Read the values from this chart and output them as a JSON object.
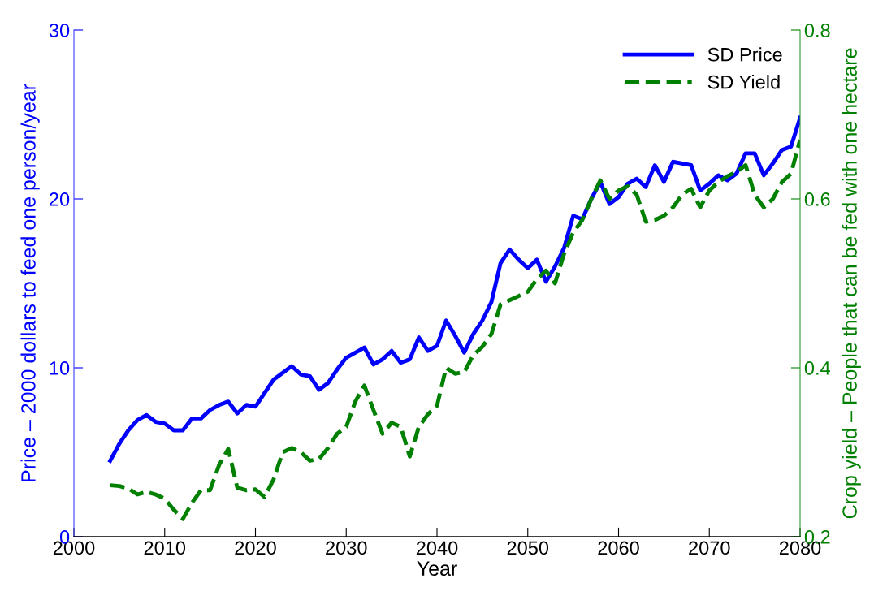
{
  "chart_data": {
    "type": "line",
    "xlabel": "Year",
    "ylabel": "Price – 2000 dollars to feed one person/year",
    "y2label": "Crop yield – People that can be fed with one hectare",
    "x": [
      2004,
      2005,
      2006,
      2007,
      2008,
      2009,
      2010,
      2011,
      2012,
      2013,
      2014,
      2015,
      2016,
      2017,
      2018,
      2019,
      2020,
      2021,
      2022,
      2023,
      2024,
      2025,
      2026,
      2027,
      2028,
      2029,
      2030,
      2031,
      2032,
      2033,
      2034,
      2035,
      2036,
      2037,
      2038,
      2039,
      2040,
      2041,
      2042,
      2043,
      2044,
      2045,
      2046,
      2047,
      2048,
      2049,
      2050,
      2051,
      2052,
      2053,
      2054,
      2055,
      2056,
      2057,
      2058,
      2059,
      2060,
      2061,
      2062,
      2063,
      2064,
      2065,
      2066,
      2067,
      2068,
      2069,
      2070,
      2071,
      2072,
      2073,
      2074,
      2075,
      2076,
      2077,
      2078,
      2079,
      2080
    ],
    "series": [
      {
        "name": "SD Price",
        "color": "#0000ff",
        "line_style": "solid",
        "values": [
          4.5,
          5.5,
          6.3,
          6.9,
          7.2,
          6.8,
          6.7,
          6.3,
          6.3,
          7.0,
          7.0,
          7.5,
          7.8,
          8.0,
          7.3,
          7.8,
          7.7,
          8.5,
          9.3,
          9.7,
          10.1,
          9.6,
          9.5,
          8.7,
          9.1,
          9.9,
          10.6,
          10.9,
          11.2,
          10.2,
          10.5,
          11.0,
          10.3,
          10.5,
          11.8,
          11.0,
          11.3,
          12.8,
          11.9,
          10.9,
          12.0,
          12.8,
          13.9,
          16.2,
          17.0,
          16.4,
          15.9,
          16.4,
          15.1,
          16.0,
          17.1,
          19.0,
          18.8,
          20.0,
          21.0,
          19.7,
          20.1,
          20.9,
          21.2,
          20.7,
          22.0,
          21.0,
          22.2,
          22.1,
          22.0,
          20.5,
          20.9,
          21.4,
          21.1,
          21.5,
          22.7,
          22.7,
          21.4,
          22.1,
          22.9,
          23.1,
          24.8
        ]
      },
      {
        "name": "SD Yield",
        "color": "#008000",
        "line_style": "dashed",
        "axis": "y2",
        "values": [
          0.261,
          0.26,
          0.257,
          0.25,
          0.253,
          0.25,
          0.245,
          0.232,
          0.221,
          0.24,
          0.255,
          0.255,
          0.285,
          0.304,
          0.258,
          0.255,
          0.256,
          0.247,
          0.268,
          0.3,
          0.305,
          0.3,
          0.29,
          0.292,
          0.305,
          0.322,
          0.33,
          0.36,
          0.379,
          0.35,
          0.322,
          0.335,
          0.33,
          0.295,
          0.33,
          0.345,
          0.355,
          0.4,
          0.393,
          0.395,
          0.415,
          0.425,
          0.44,
          0.475,
          0.48,
          0.485,
          0.49,
          0.505,
          0.515,
          0.5,
          0.535,
          0.56,
          0.575,
          0.6,
          0.622,
          0.6,
          0.61,
          0.615,
          0.605,
          0.573,
          0.575,
          0.58,
          0.59,
          0.605,
          0.612,
          0.59,
          0.61,
          0.62,
          0.627,
          0.632,
          0.64,
          0.605,
          0.59,
          0.6,
          0.62,
          0.63,
          0.67
        ]
      }
    ],
    "xlim": [
      2000,
      2080
    ],
    "xticks": [
      2000,
      2010,
      2020,
      2030,
      2040,
      2050,
      2060,
      2070,
      2080
    ],
    "ylim": [
      0,
      30
    ],
    "yticks": [
      0,
      10,
      20,
      30
    ],
    "y2lim": [
      0.2,
      0.8
    ],
    "y2ticks": [
      0.2,
      0.4,
      0.6,
      0.8
    ],
    "legend": "top right",
    "grid": false
  }
}
